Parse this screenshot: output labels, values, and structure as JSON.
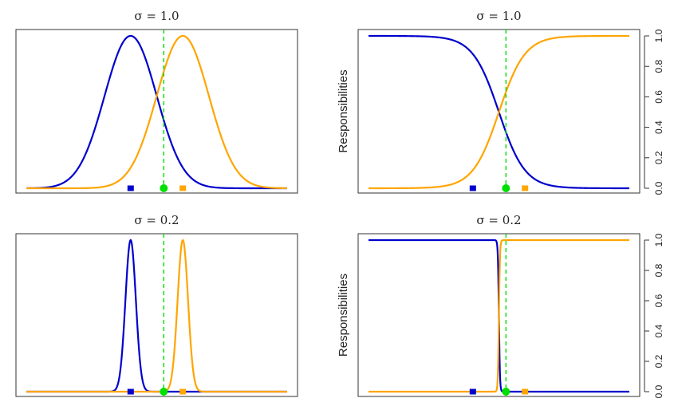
{
  "colors": {
    "class1": "#0000CD",
    "class2": "#FFA500",
    "point": "#00E000",
    "frame": "#333333"
  },
  "chart_data": [
    {
      "type": "line",
      "title": "σ = 1.0",
      "ylabel": "",
      "sigma": 1.0,
      "means": [
        -1,
        1
      ],
      "x_point": 0.27,
      "xlim": [
        -5,
        5
      ],
      "ylim": [
        0,
        1
      ],
      "series": [
        {
          "name": "class 1 density",
          "kind": "density",
          "mean": -1
        },
        {
          "name": "class 2 density",
          "kind": "density",
          "mean": 1
        }
      ],
      "yticks": []
    },
    {
      "type": "line",
      "title": "σ = 1.0",
      "ylabel": "Responsibilities",
      "sigma": 1.0,
      "means": [
        -1,
        1
      ],
      "x_point": 0.27,
      "xlim": [
        -5,
        5
      ],
      "ylim": [
        0,
        1
      ],
      "series": [
        {
          "name": "class 1 responsibility",
          "kind": "resp",
          "mean": -1
        },
        {
          "name": "class 2 responsibility",
          "kind": "resp",
          "mean": 1
        }
      ],
      "yticks": [
        "0.0",
        "0.2",
        "0.4",
        "0.6",
        "0.8",
        "1.0"
      ]
    },
    {
      "type": "line",
      "title": "σ = 0.2",
      "ylabel": "",
      "sigma": 0.2,
      "means": [
        -1,
        1
      ],
      "x_point": 0.27,
      "xlim": [
        -5,
        5
      ],
      "ylim": [
        0,
        1
      ],
      "series": [
        {
          "name": "class 1 density",
          "kind": "density",
          "mean": -1
        },
        {
          "name": "class 2 density",
          "kind": "density",
          "mean": 1
        }
      ],
      "yticks": []
    },
    {
      "type": "line",
      "title": "σ = 0.2",
      "ylabel": "Responsibilities",
      "sigma": 0.2,
      "means": [
        -1,
        1
      ],
      "x_point": 0.27,
      "xlim": [
        -5,
        5
      ],
      "ylim": [
        0,
        1
      ],
      "series": [
        {
          "name": "class 1 responsibility",
          "kind": "resp",
          "mean": -1
        },
        {
          "name": "class 2 responsibility",
          "kind": "resp",
          "mean": 1
        }
      ],
      "yticks": [
        "0.0",
        "0.2",
        "0.4",
        "0.6",
        "0.8",
        "1.0"
      ]
    }
  ]
}
